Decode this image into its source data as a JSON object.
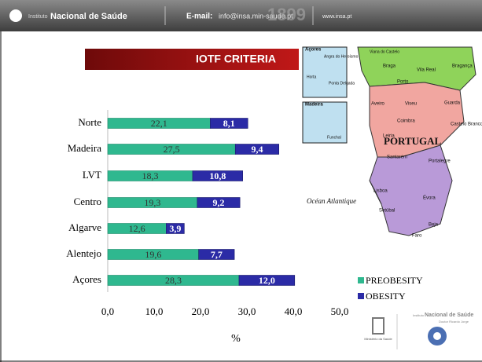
{
  "header": {
    "institute": "Instituto",
    "name": "Nacional de Saúde",
    "email_label": "E-mail:",
    "email": "info@insa.min-saude.pt",
    "year": "1899",
    "web": "www.insa.pt"
  },
  "chart_data": {
    "type": "bar",
    "orientation": "horizontal",
    "stacked": true,
    "title": "IOTF CRITERIA",
    "categories": [
      "Norte",
      "Madeira",
      "LVT",
      "Centro",
      "Algarve",
      "Alentejo",
      "Açores"
    ],
    "series": [
      {
        "name": "PREOBESITY",
        "color": "#2fb88f",
        "values": [
          22.1,
          27.5,
          18.3,
          19.3,
          12.6,
          19.6,
          28.3
        ],
        "value_labels": [
          "22,1",
          "27,5",
          "18,3",
          "19,3",
          "12,6",
          "19,6",
          "28,3"
        ]
      },
      {
        "name": "OBESITY",
        "color": "#2b2ba6",
        "values": [
          8.1,
          9.4,
          10.8,
          9.2,
          3.9,
          7.7,
          12.0
        ],
        "value_labels": [
          "8,1",
          "9,4",
          "10,8",
          "9,2",
          "3,9",
          "7,7",
          "12,0"
        ]
      }
    ],
    "xlabel": "%",
    "xlim": [
      0,
      50
    ],
    "xticks": [
      {
        "value": 0,
        "label": "0,0"
      },
      {
        "value": 10,
        "label": "10,0"
      },
      {
        "value": 20,
        "label": "20,0"
      },
      {
        "value": 30,
        "label": "30,0"
      },
      {
        "value": 40,
        "label": "40,0"
      },
      {
        "value": 50,
        "label": "50,0"
      }
    ],
    "legend": "lower right"
  },
  "map": {
    "labels": [
      "Açores",
      "Angra do Heroísmo",
      "Horta",
      "Ponta Delgada",
      "Madeira",
      "Funchal",
      "Viana do Castelo",
      "Braga",
      "Vila Real",
      "Bragança",
      "Porto",
      "Aveiro",
      "Viseu",
      "Guarda",
      "Coimbra",
      "Castelo Branco",
      "Leiria",
      "PORTUGAL",
      "Santarém",
      "Portalegre",
      "Lisboa",
      "Setúbal",
      "Évora",
      "Océan Atlantique",
      "Beja",
      "Faro"
    ]
  },
  "footer": {
    "ministry": "Ministério da Saúde",
    "institute": "Instituto",
    "name": "Nacional de Saúde",
    "person": "Doutor Ricardo Jorge"
  }
}
